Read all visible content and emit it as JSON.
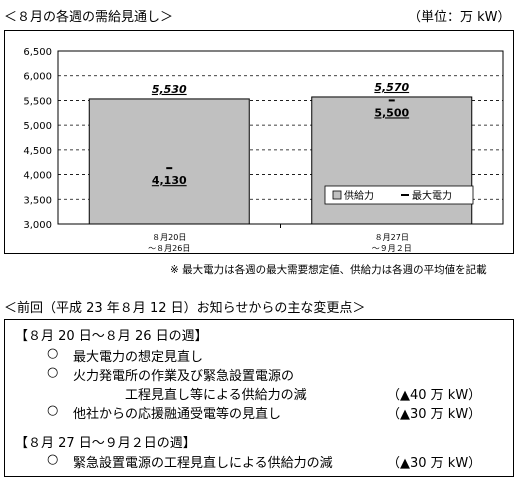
{
  "header": {
    "title": "＜８月の各週の需給見通し＞",
    "unit": "（単位：万 kW）"
  },
  "chart_data": {
    "type": "bar",
    "categories": [
      [
        "８月20日",
        "～８月26日"
      ],
      [
        "８月27日",
        "～９月２日"
      ]
    ],
    "series": [
      {
        "name": "供給力",
        "values": [
          5530,
          5570
        ],
        "labels": [
          "5,530",
          "5,570"
        ]
      },
      {
        "name": "最大電力",
        "values": [
          4130,
          5500
        ],
        "labels": [
          "4,130",
          "5,500"
        ]
      }
    ],
    "ylim": [
      3000,
      6500
    ],
    "yticks": [
      3000,
      3500,
      4000,
      4500,
      5000,
      5500,
      6000,
      6500
    ],
    "ytick_labels": [
      "3,000",
      "3,500",
      "4,000",
      "4,500",
      "5,000",
      "5,500",
      "6,000",
      "6,500"
    ],
    "grid": "dashed horizontal",
    "legend_position": "bottom-right",
    "colors": {
      "supply_bar": "#c0c0c0",
      "bar_outline": "#000000",
      "max_marker": "#000000"
    }
  },
  "note": "※ 最大電力は各週の最大需要想定値、供給力は各週の平均値を記載",
  "changes": {
    "title": "＜前回（平成 23 年８月 12 日）お知らせからの主な変更点＞",
    "week1": {
      "heading": "【８月 20 日～８月 26 日の週】",
      "items": [
        {
          "bullet": "○",
          "text": "最大電力の想定見直し",
          "text2": "",
          "amount": ""
        },
        {
          "bullet": "○",
          "text": "火力発電所の作業及び緊急設置電源の",
          "text2": "工程見直し等による供給力の減",
          "amount": "（▲40 万 kW）"
        },
        {
          "bullet": "○",
          "text": "他社からの応援融通受電等の見直し",
          "text2": "",
          "amount": "（▲30 万 kW）"
        }
      ]
    },
    "week2": {
      "heading": "【８月 27 日～９月２日の週】",
      "items": [
        {
          "bullet": "○",
          "text": "緊急設置電源の工程見直しによる供給力の減",
          "amount": "（▲30 万 kW）"
        }
      ]
    }
  }
}
